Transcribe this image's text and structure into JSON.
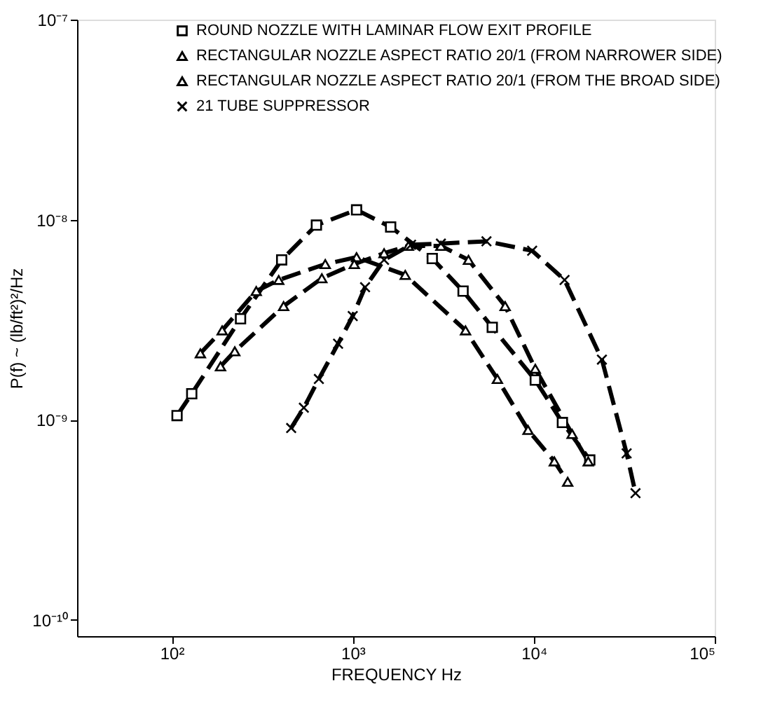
{
  "chart_data": {
    "type": "line",
    "xlabel": "FREQUENCY Hz",
    "ylabel": "P(f) ~ (lb/ft²)²/Hz",
    "log": "xy",
    "xlim": [
      30,
      100000
    ],
    "ylim": [
      8.3e-11,
      1e-07
    ],
    "xticks": [
      {
        "value": 100,
        "label": "10²"
      },
      {
        "value": 1000,
        "label": "10³"
      },
      {
        "value": 10000,
        "label": "10⁴"
      },
      {
        "value": 100000,
        "label": "10⁵"
      }
    ],
    "yticks": [
      {
        "value": 1e-10,
        "label": "10⁻¹⁰"
      },
      {
        "value": 1e-09,
        "label": "10⁻⁹"
      },
      {
        "value": 1e-08,
        "label": "10⁻⁸"
      },
      {
        "value": 1e-07,
        "label": "10⁻⁷"
      }
    ],
    "grid": false,
    "legend": "top",
    "line_style": "dashed",
    "series": [
      {
        "name": "ROUND NOZZLE WITH LAMINAR FLOW EXIT PROFILE",
        "color": "#000000",
        "marker": "square",
        "x": [
          107,
          129,
          240,
          405,
          630,
          1050,
          1620,
          2750,
          4070,
          5900,
          10200,
          14400,
          20400
        ],
        "values": [
          1.05e-09,
          1.35e-09,
          3.2e-09,
          6.3e-09,
          9.4e-09,
          1.12e-08,
          9.2e-09,
          6.4e-09,
          4.4e-09,
          2.9e-09,
          1.58e-09,
          9.7e-10,
          6.3e-10
        ]
      },
      {
        "name": "RECTANGULAR NOZZLE ASPECT RATIO 20/1 (FROM NARROWER SIDE)",
        "color": "#000000",
        "marker": "triangle",
        "x": [
          144,
          190,
          293,
          390,
          705,
          1050,
          1950,
          4200,
          6300,
          9300,
          13000,
          15400
        ],
        "values": [
          2.15e-09,
          2.8e-09,
          4.4e-09,
          5e-09,
          6e-09,
          6.5e-09,
          5.3e-09,
          2.8e-09,
          1.6e-09,
          8.9e-10,
          6.2e-10,
          4.9e-10
        ]
      },
      {
        "name": "RECTANGULAR NOZZLE ASPECT RATIO 20/1 (FROM THE BROAD SIDE)",
        "color": "#000000",
        "marker": "triangle",
        "x": [
          186,
          223,
          415,
          675,
          1020,
          1490,
          2030,
          3070,
          4360,
          6950,
          10200,
          16300,
          20000
        ],
        "values": [
          1.85e-09,
          2.2e-09,
          3.7e-09,
          5.1e-09,
          6e-09,
          6.8e-09,
          7.4e-09,
          7.4e-09,
          6.3e-09,
          3.7e-09,
          1.8e-09,
          8.5e-10,
          6.2e-10
        ]
      },
      {
        "name": "21 TUBE SUPPRESSOR",
        "color": "#000000",
        "marker": "cross",
        "x": [
          457,
          537,
          650,
          830,
          1000,
          1170,
          1490,
          2100,
          3070,
          5480,
          9800,
          14800,
          23800,
          32600,
          36500
        ],
        "values": [
          9.1e-10,
          1.15e-09,
          1.6e-09,
          2.4e-09,
          3.3e-09,
          4.6e-09,
          6.3e-09,
          7.5e-09,
          7.6e-09,
          7.8e-09,
          7e-09,
          5e-09,
          2e-09,
          6.8e-10,
          4.3e-10
        ]
      }
    ]
  }
}
